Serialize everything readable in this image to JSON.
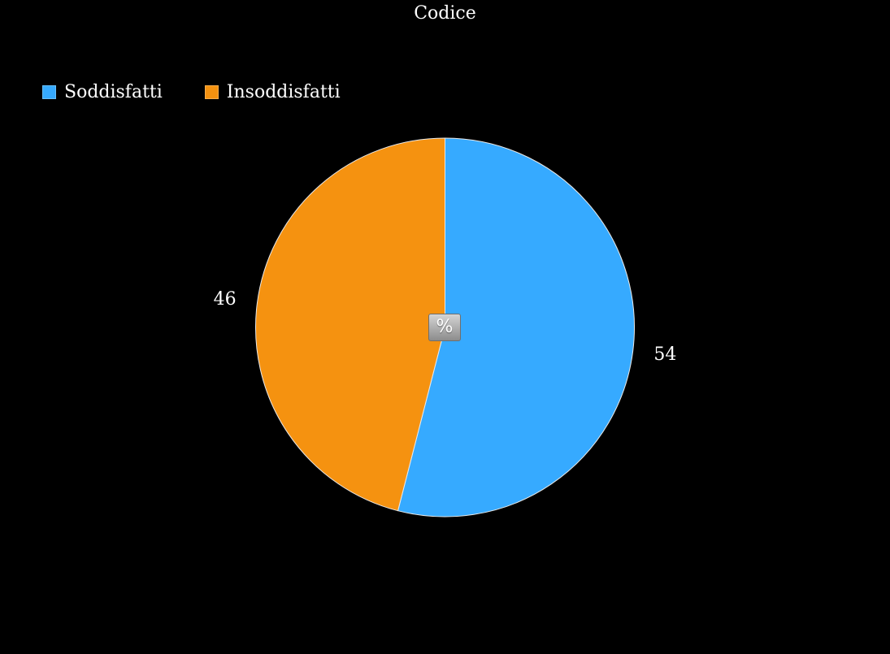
{
  "chart_data": {
    "type": "pie",
    "title": "Codice",
    "unit_label": "%",
    "legend_position": "top-left",
    "slices": [
      {
        "label": "Soddisfatti",
        "value": 54,
        "color": "#36aaff"
      },
      {
        "label": "Insoddisfatti",
        "value": 46,
        "color": "#f59210"
      }
    ]
  }
}
